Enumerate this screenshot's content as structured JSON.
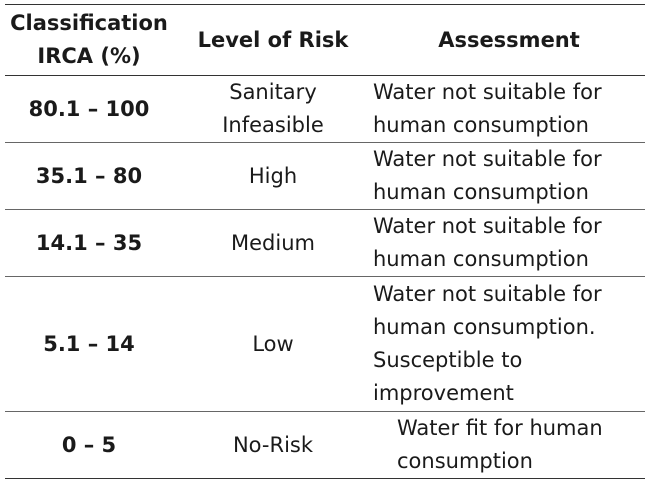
{
  "table": {
    "headers": {
      "classification": "Classification\nIRCA (%)",
      "level_of_risk": "Level of Risk",
      "assessment": "Assessment"
    },
    "rows": [
      {
        "range": "80.1 – 100",
        "risk": "Sanitary\nInfeasible",
        "assessment": "Water not suitable for\nhuman consumption"
      },
      {
        "range": "35.1 – 80",
        "risk": "High",
        "assessment": "Water not suitable for\nhuman consumption"
      },
      {
        "range": "14.1 – 35",
        "risk": "Medium",
        "assessment": "Water not suitable for\nhuman consumption"
      },
      {
        "range": "5.1 – 14",
        "risk": "Low",
        "assessment": "Water not suitable for\nhuman consumption.\nSusceptible to\nimprovement"
      },
      {
        "range": "0 – 5",
        "risk": "No-Risk",
        "assessment": "Water fit for human\nconsumption"
      }
    ]
  }
}
